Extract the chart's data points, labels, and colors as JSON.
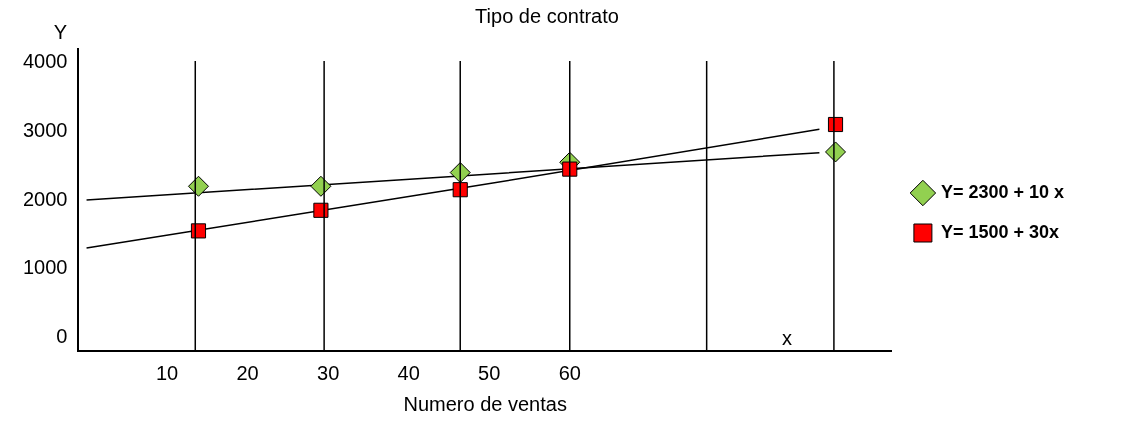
{
  "chart_data": {
    "type": "scatter",
    "title": "Tipo de contrato",
    "xlabel": "Numero de ventas",
    "ylabel": "Y",
    "x": [
      13.9,
      29.1,
      46.4,
      60,
      93
    ],
    "xlim": [
      -1,
      100
    ],
    "xticks": [
      10,
      20,
      30,
      40,
      50,
      60
    ],
    "ylim": [
      -200,
      4200
    ],
    "yticks": [
      0,
      1000,
      2000,
      3000,
      4000
    ],
    "series": [
      {
        "name": "Y= 2300 + 10 x",
        "color": "#92d050",
        "marker": "diamond",
        "values": [
          2200,
          2200,
          2400,
          2550,
          2700
        ]
      },
      {
        "name": "Y= 1500 + 30x",
        "color": "#ff0000",
        "marker": "square",
        "values": [
          1550,
          1850,
          2150,
          2450,
          3100
        ]
      },
      {
        "type": "line",
        "color": "#000000",
        "x": [
          0,
          46.4,
          91
        ],
        "values": [
          2000,
          2350,
          2690
        ]
      },
      {
        "type": "line",
        "color": "#000000",
        "x": [
          0,
          46.4,
          91
        ],
        "values": [
          1300,
          2170,
          3030
        ]
      }
    ],
    "ref_lines": [
      {
        "axis": "x",
        "value": 13.5,
        "color": "#000000"
      },
      {
        "axis": "x",
        "value": 29.5,
        "color": "#000000"
      },
      {
        "axis": "x",
        "value": 46.4,
        "color": "#000000"
      },
      {
        "axis": "x",
        "value": 60,
        "color": "#000000"
      },
      {
        "axis": "x",
        "value": 77,
        "color": "#000000"
      },
      {
        "axis": "x",
        "value": 92.8,
        "color": "#000000"
      }
    ],
    "annotations": [
      "x"
    ],
    "grid": false,
    "legend": "right"
  }
}
